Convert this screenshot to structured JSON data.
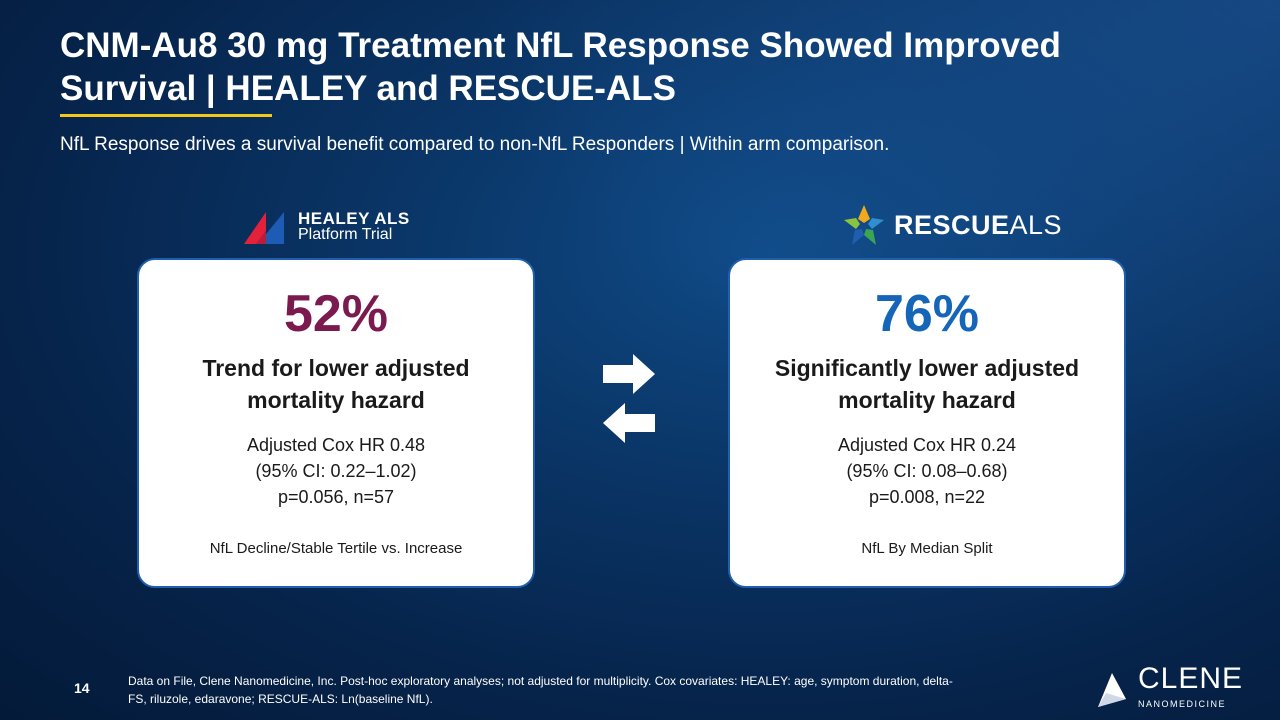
{
  "slide": {
    "title": "CNM-Au8 30 mg Treatment NfL Response Showed Improved Survival | HEALEY and RESCUE-ALS",
    "subtitle": "NfL Response drives a survival benefit compared to non-NfL Responders | Within arm comparison.",
    "page_number": "14",
    "footnote": "Data on File, Clene Nanomedicine, Inc. Post-hoc exploratory analyses; not adjusted for multiplicity. Cox covariates: HEALEY: age, symptom duration, delta-FS, riluzole, edaravone; RESCUE-ALS: Ln(baseline NfL)."
  },
  "logos": {
    "healey": {
      "line1": "HEALEY ALS",
      "line2": "Platform Trial"
    },
    "rescue": {
      "bold": "RESCUE",
      "light": "ALS"
    },
    "clene": {
      "line1": "CLENE",
      "line2": "NANOMEDICINE"
    }
  },
  "cards": {
    "left": {
      "percent": "52%",
      "headline_line1": "Trend for lower adjusted",
      "headline_line2": "mortality hazard",
      "stat_line1": "Adjusted Cox HR 0.48",
      "stat_line2": "(95% CI: 0.22–1.02)",
      "stat_line3": "p=0.056, n=57",
      "method": "NfL Decline/Stable Tertile vs. Increase"
    },
    "right": {
      "percent": "76%",
      "headline_line1": "Significantly lower adjusted",
      "headline_line2": "mortality hazard",
      "stat_line1": "Adjusted Cox HR 0.24",
      "stat_line2": "(95% CI: 0.08–0.68)",
      "stat_line3": "p=0.008, n=22",
      "method": "NfL By Median Split"
    }
  },
  "colors": {
    "accent_underline": "#f2c81c",
    "left_percent": "#7b1a4e",
    "right_percent": "#1565b8",
    "card_border": "#1f5fae"
  },
  "icons": [
    "healey-logo-icon",
    "rescue-star-icon",
    "arrow-right-icon",
    "arrow-left-icon",
    "clene-logo-icon"
  ]
}
